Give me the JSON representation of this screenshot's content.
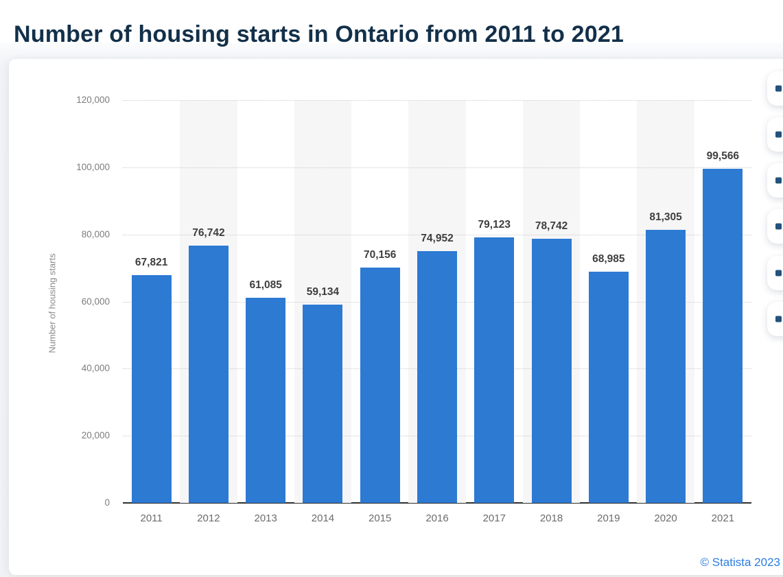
{
  "header": {
    "title": "Number of housing starts in Ontario from 2011 to 2021"
  },
  "footer": {
    "copyright": "© Statista 2023"
  },
  "toolbar": {
    "buttons": [
      {
        "name": "toolbar-button-1",
        "icon": "toolbar-icon"
      },
      {
        "name": "toolbar-button-2",
        "icon": "toolbar-icon"
      },
      {
        "name": "toolbar-button-3",
        "icon": "toolbar-icon"
      },
      {
        "name": "toolbar-button-4",
        "icon": "toolbar-icon"
      },
      {
        "name": "toolbar-button-5",
        "icon": "toolbar-icon"
      },
      {
        "name": "toolbar-button-6",
        "icon": "toolbar-icon"
      }
    ]
  },
  "chart_data": {
    "type": "bar",
    "title": "Number of housing starts in Ontario from 2011 to 2021",
    "categories": [
      "2011",
      "2012",
      "2013",
      "2014",
      "2015",
      "2016",
      "2017",
      "2018",
      "2019",
      "2020",
      "2021"
    ],
    "values": [
      67821,
      76742,
      61085,
      59134,
      70156,
      74952,
      79123,
      78742,
      68985,
      81305,
      99566
    ],
    "value_labels": [
      "67,821",
      "76,742",
      "61,085",
      "59,134",
      "70,156",
      "74,952",
      "79,123",
      "78,742",
      "68,985",
      "81,305",
      "99,566"
    ],
    "xlabel": "",
    "ylabel": "Number of housing starts",
    "ylim": [
      0,
      120000
    ],
    "yticks": [
      0,
      20000,
      40000,
      60000,
      80000,
      100000,
      120000
    ],
    "ytick_labels": [
      "0",
      "20,000",
      "40,000",
      "60,000",
      "80,000",
      "100,000",
      "120,000"
    ],
    "grid": "horizontal-dotted",
    "legend_position": "none",
    "band_columns_shaded": "alternating even years",
    "colors": {
      "bar": "#2d7ad3",
      "band": "#f6f6f7",
      "gridline": "#cccccc",
      "axis_line": "#2e2e2e",
      "value_label": "#3e3e3e",
      "tick_label": "#7c7c7c",
      "title": "#13304a",
      "copyright": "#2b7ce0"
    }
  }
}
